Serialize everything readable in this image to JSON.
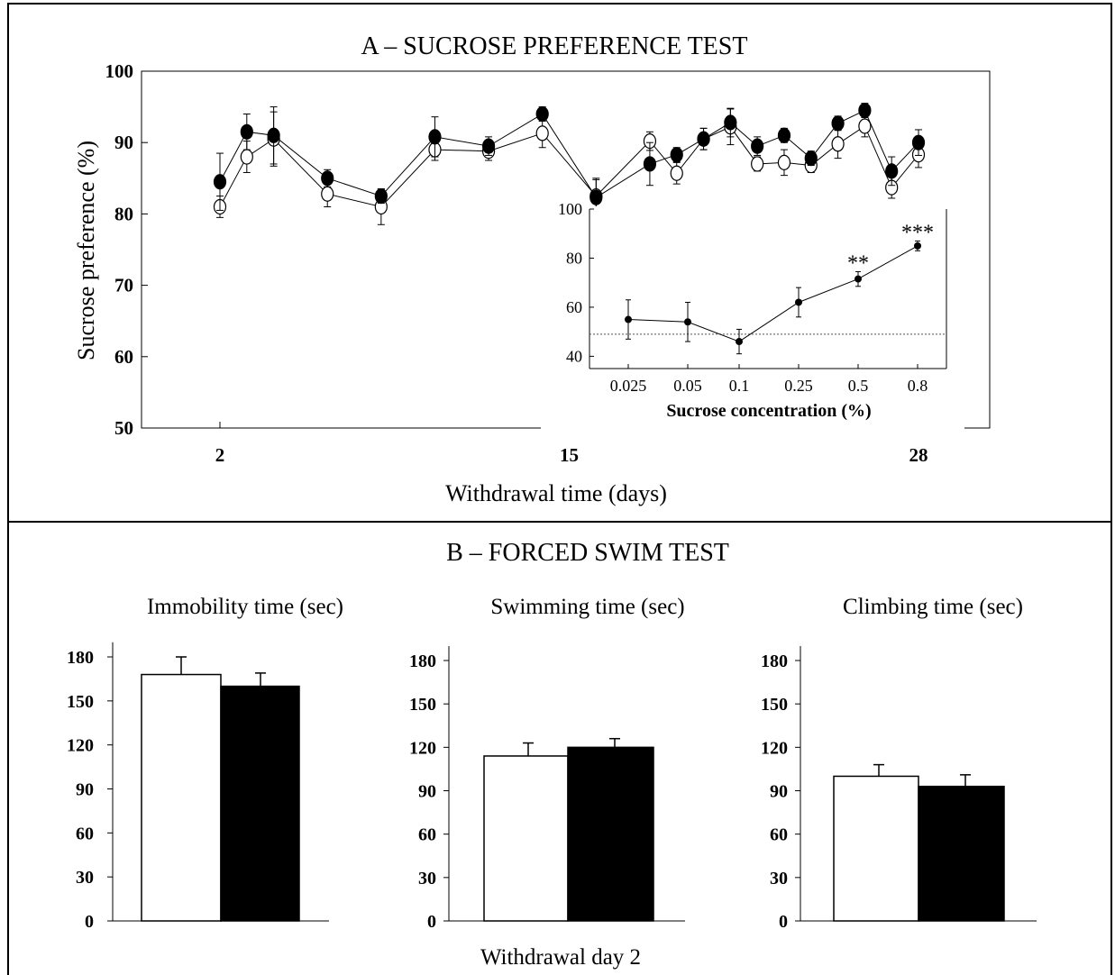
{
  "panel_a": {
    "title": "A – SUCROSE PREFERENCE TEST",
    "ylabel": "Sucrose preference (%)",
    "xlabel": "Withdrawal time (days)",
    "yticks": [
      "50",
      "60",
      "70",
      "80",
      "90",
      "100"
    ],
    "xticks": [
      "2",
      "15",
      "28"
    ]
  },
  "inset": {
    "xlabel": "Sucrose concentration (%)",
    "yticks": [
      "40",
      "60",
      "80",
      "100"
    ],
    "xticks": [
      "0.025",
      "0.05",
      "0.1",
      "0.25",
      "0.5",
      "0.8"
    ],
    "sig_labels": [
      "**",
      "***"
    ]
  },
  "panel_b": {
    "title": "B – FORCED SWIM TEST",
    "xlabel": "Withdrawal day 2",
    "subtitles": [
      "Immobility time (sec)",
      "Swimming time (sec)",
      "Climbing time (sec)"
    ],
    "yticks": [
      "0",
      "30",
      "60",
      "90",
      "120",
      "150",
      "180"
    ]
  },
  "chart_data": [
    {
      "type": "line",
      "title": "A – SUCROSE PREFERENCE TEST",
      "xlabel": "Withdrawal time (days)",
      "ylabel": "Sucrose preference (%)",
      "xlim": [
        0,
        30
      ],
      "ylim": [
        50,
        100
      ],
      "x": [
        2,
        3,
        4,
        5,
        6,
        7,
        8,
        9,
        10,
        11,
        12,
        13,
        14,
        15,
        16,
        17,
        18,
        19,
        20,
        21,
        22,
        23,
        24,
        25,
        26,
        27,
        28
      ],
      "series": [
        {
          "style": "filled",
          "values": [
            84.5,
            91.5,
            91,
            null,
            85,
            null,
            82.5,
            null,
            90.8,
            null,
            89.5,
            null,
            94,
            null,
            82.3,
            null,
            87,
            88.3,
            90.5,
            92.8,
            89.5,
            91,
            87.8,
            92.7,
            94.5,
            86,
            90
          ],
          "err": [
            4,
            2.5,
            4,
            null,
            1.2,
            null,
            1,
            null,
            2.8,
            null,
            1.3,
            null,
            1,
            null,
            2.5,
            null,
            3,
            1,
            1.5,
            2,
            1.3,
            1,
            1,
            1,
            1,
            2,
            1.8
          ]
        },
        {
          "style": "open",
          "values": [
            81,
            88,
            90.5,
            null,
            82.8,
            null,
            81,
            null,
            89,
            null,
            88.8,
            null,
            91.3,
            null,
            82.5,
            null,
            90.2,
            85.7,
            90.5,
            92.2,
            87,
            87.2,
            86.8,
            89.8,
            92.3,
            83.7,
            88.3
          ],
          "err": [
            1.5,
            2.2,
            3.8,
            null,
            1.8,
            null,
            2.5,
            null,
            1.5,
            null,
            1.3,
            null,
            2,
            null,
            2.5,
            null,
            1.3,
            1.5,
            1.5,
            2.5,
            1,
            1.8,
            1,
            2,
            1.5,
            1.5,
            1.8
          ]
        }
      ]
    },
    {
      "type": "line",
      "xlabel": "Sucrose concentration (%)",
      "ylim": [
        35,
        100
      ],
      "categories": [
        "0.025",
        "0.05",
        "0.1",
        "0.25",
        "0.5",
        "0.8"
      ],
      "values": [
        55,
        54,
        46,
        62,
        71.5,
        85
      ],
      "err": [
        8,
        8,
        5,
        6,
        3,
        2
      ],
      "reference_line": 49,
      "annotations": [
        {
          "x": "0.5",
          "label": "**"
        },
        {
          "x": "0.8",
          "label": "***"
        }
      ]
    },
    {
      "type": "bar",
      "title": "Immobility time (sec)",
      "ylim": [
        0,
        180
      ],
      "series": [
        {
          "style": "open",
          "values": [
            168
          ],
          "err": [
            12
          ]
        },
        {
          "style": "filled",
          "values": [
            160
          ],
          "err": [
            9
          ]
        }
      ]
    },
    {
      "type": "bar",
      "title": "Swimming time (sec)",
      "ylim": [
        0,
        180
      ],
      "series": [
        {
          "style": "open",
          "values": [
            114
          ],
          "err": [
            9
          ]
        },
        {
          "style": "filled",
          "values": [
            120
          ],
          "err": [
            6
          ]
        }
      ]
    },
    {
      "type": "bar",
      "title": "Climbing time (sec)",
      "ylim": [
        0,
        180
      ],
      "series": [
        {
          "style": "open",
          "values": [
            100
          ],
          "err": [
            8
          ]
        },
        {
          "style": "filled",
          "values": [
            93
          ],
          "err": [
            8
          ]
        }
      ]
    }
  ]
}
